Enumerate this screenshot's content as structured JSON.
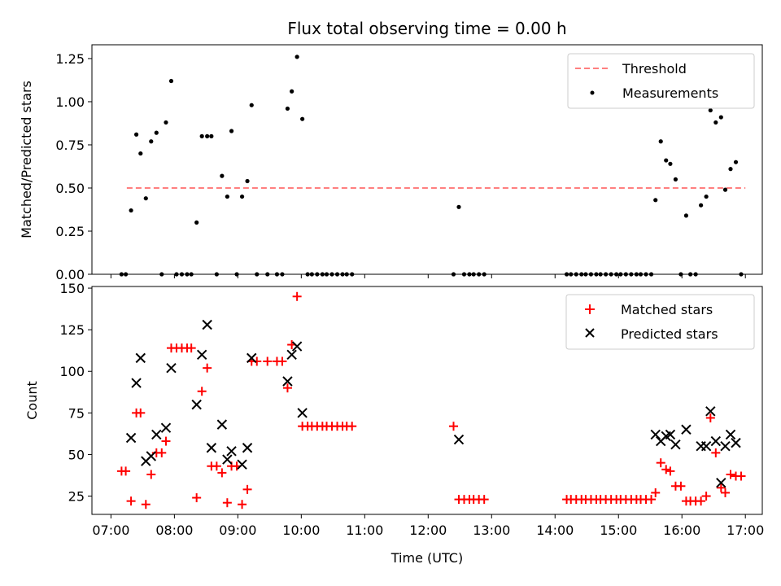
{
  "chart_data": [
    {
      "type": "scatter",
      "title": "Flux total observing time = 0.00 h",
      "xlabel": "",
      "ylabel": "Matched/Predicted stars",
      "xlim": [
        "06:42",
        "17:16"
      ],
      "ylim": [
        0,
        1.33
      ],
      "yticks": [
        "0.00",
        "0.25",
        "0.50",
        "0.75",
        "1.00",
        "1.25"
      ],
      "threshold": {
        "name": "Threshold",
        "y": 0.5,
        "x_range": [
          "07:15",
          "17:00"
        ],
        "color": "#ff7f7f",
        "style": "dashed"
      },
      "series": [
        {
          "name": "Measurements",
          "color": "#000000",
          "marker": "dot",
          "points": [
            [
              "07:10",
              0
            ],
            [
              "07:14",
              0
            ],
            [
              "07:19",
              0.37
            ],
            [
              "07:24",
              0.81
            ],
            [
              "07:28",
              0.7
            ],
            [
              "07:33",
              0.44
            ],
            [
              "07:38",
              0.77
            ],
            [
              "07:43",
              0.82
            ],
            [
              "07:48",
              0
            ],
            [
              "07:52",
              0.88
            ],
            [
              "07:57",
              1.12
            ],
            [
              "08:02",
              0
            ],
            [
              "08:07",
              0
            ],
            [
              "08:12",
              0
            ],
            [
              "08:16",
              0
            ],
            [
              "08:21",
              0.3
            ],
            [
              "08:26",
              0.8
            ],
            [
              "08:31",
              0.8
            ],
            [
              "08:35",
              0.8
            ],
            [
              "08:40",
              0
            ],
            [
              "08:45",
              0.57
            ],
            [
              "08:50",
              0.45
            ],
            [
              "08:54",
              0.83
            ],
            [
              "08:59",
              0
            ],
            [
              "09:04",
              0.45
            ],
            [
              "09:09",
              0.54
            ],
            [
              "09:13",
              0.98
            ],
            [
              "09:18",
              0
            ],
            [
              "09:28",
              0
            ],
            [
              "09:37",
              0
            ],
            [
              "09:42",
              0
            ],
            [
              "09:47",
              0.96
            ],
            [
              "09:51",
              1.06
            ],
            [
              "09:56",
              1.26
            ],
            [
              "10:01",
              0.9
            ],
            [
              "10:06",
              0
            ],
            [
              "10:10",
              0
            ],
            [
              "10:15",
              0
            ],
            [
              "10:20",
              0
            ],
            [
              "10:24",
              0
            ],
            [
              "10:29",
              0
            ],
            [
              "10:34",
              0
            ],
            [
              "10:39",
              0
            ],
            [
              "10:43",
              0
            ],
            [
              "10:48",
              0
            ],
            [
              "12:24",
              0
            ],
            [
              "12:29",
              0.39
            ],
            [
              "12:34",
              0
            ],
            [
              "12:39",
              0
            ],
            [
              "12:43",
              0
            ],
            [
              "12:48",
              0
            ],
            [
              "12:53",
              0
            ],
            [
              "14:11",
              0
            ],
            [
              "14:15",
              0
            ],
            [
              "14:20",
              0
            ],
            [
              "14:25",
              0
            ],
            [
              "14:29",
              0
            ],
            [
              "14:34",
              0
            ],
            [
              "14:39",
              0
            ],
            [
              "14:43",
              0
            ],
            [
              "14:48",
              0
            ],
            [
              "14:53",
              0
            ],
            [
              "14:58",
              0
            ],
            [
              "15:02",
              0
            ],
            [
              "15:07",
              0
            ],
            [
              "15:12",
              0
            ],
            [
              "15:17",
              0
            ],
            [
              "15:21",
              0
            ],
            [
              "15:26",
              0
            ],
            [
              "15:31",
              0
            ],
            [
              "15:35",
              0.43
            ],
            [
              "15:40",
              0.77
            ],
            [
              "15:45",
              0.66
            ],
            [
              "15:49",
              0.64
            ],
            [
              "15:54",
              0.55
            ],
            [
              "15:59",
              0
            ],
            [
              "16:04",
              0.34
            ],
            [
              "16:08",
              0
            ],
            [
              "16:13",
              0
            ],
            [
              "16:18",
              0.4
            ],
            [
              "16:23",
              0.45
            ],
            [
              "16:27",
              0.95
            ],
            [
              "16:32",
              0.88
            ],
            [
              "16:37",
              0.91
            ],
            [
              "16:41",
              0.49
            ],
            [
              "16:46",
              0.61
            ],
            [
              "16:51",
              0.65
            ],
            [
              "16:56",
              0
            ]
          ]
        }
      ],
      "legend": {
        "placement": "upper right",
        "entries": [
          "Threshold",
          "Measurements"
        ]
      }
    },
    {
      "type": "scatter",
      "title": "",
      "xlabel": "Time (UTC)",
      "ylabel": "Count",
      "xlim": [
        "06:42",
        "17:16"
      ],
      "ylim": [
        14,
        151
      ],
      "yticks": [
        "25",
        "50",
        "75",
        "100",
        "125",
        "150"
      ],
      "xticks": [
        "07:00",
        "08:00",
        "09:00",
        "10:00",
        "11:00",
        "12:00",
        "13:00",
        "14:00",
        "15:00",
        "16:00",
        "17:00"
      ],
      "series": [
        {
          "name": "Matched stars",
          "color": "#ff0000",
          "marker": "plus",
          "points": [
            [
              "07:10",
              40
            ],
            [
              "07:14",
              40
            ],
            [
              "07:19",
              22
            ],
            [
              "07:24",
              75
            ],
            [
              "07:28",
              75
            ],
            [
              "07:33",
              20
            ],
            [
              "07:38",
              38
            ],
            [
              "07:43",
              51
            ],
            [
              "07:48",
              51
            ],
            [
              "07:52",
              58
            ],
            [
              "07:57",
              114
            ],
            [
              "08:02",
              114
            ],
            [
              "08:07",
              114
            ],
            [
              "08:12",
              114
            ],
            [
              "08:16",
              114
            ],
            [
              "08:21",
              24
            ],
            [
              "08:26",
              88
            ],
            [
              "08:31",
              102
            ],
            [
              "08:35",
              43
            ],
            [
              "08:40",
              43
            ],
            [
              "08:45",
              39
            ],
            [
              "08:50",
              21
            ],
            [
              "08:54",
              43
            ],
            [
              "08:59",
              43
            ],
            [
              "09:04",
              20
            ],
            [
              "09:09",
              29
            ],
            [
              "09:13",
              106
            ],
            [
              "09:18",
              106
            ],
            [
              "09:28",
              106
            ],
            [
              "09:37",
              106
            ],
            [
              "09:42",
              106
            ],
            [
              "09:47",
              90
            ],
            [
              "09:51",
              116
            ],
            [
              "09:56",
              145
            ],
            [
              "10:01",
              67
            ],
            [
              "10:06",
              67
            ],
            [
              "10:10",
              67
            ],
            [
              "10:15",
              67
            ],
            [
              "10:20",
              67
            ],
            [
              "10:24",
              67
            ],
            [
              "10:29",
              67
            ],
            [
              "10:34",
              67
            ],
            [
              "10:39",
              67
            ],
            [
              "10:43",
              67
            ],
            [
              "10:48",
              67
            ],
            [
              "12:24",
              67
            ],
            [
              "12:29",
              23
            ],
            [
              "12:34",
              23
            ],
            [
              "12:39",
              23
            ],
            [
              "12:43",
              23
            ],
            [
              "12:48",
              23
            ],
            [
              "12:53",
              23
            ],
            [
              "14:11",
              23
            ],
            [
              "14:15",
              23
            ],
            [
              "14:20",
              23
            ],
            [
              "14:25",
              23
            ],
            [
              "14:29",
              23
            ],
            [
              "14:34",
              23
            ],
            [
              "14:39",
              23
            ],
            [
              "14:43",
              23
            ],
            [
              "14:48",
              23
            ],
            [
              "14:53",
              23
            ],
            [
              "14:58",
              23
            ],
            [
              "15:02",
              23
            ],
            [
              "15:07",
              23
            ],
            [
              "15:12",
              23
            ],
            [
              "15:17",
              23
            ],
            [
              "15:21",
              23
            ],
            [
              "15:26",
              23
            ],
            [
              "15:31",
              23
            ],
            [
              "15:35",
              27
            ],
            [
              "15:40",
              45
            ],
            [
              "15:45",
              41
            ],
            [
              "15:49",
              40
            ],
            [
              "15:54",
              31
            ],
            [
              "15:59",
              31
            ],
            [
              "16:04",
              22
            ],
            [
              "16:08",
              22
            ],
            [
              "16:13",
              22
            ],
            [
              "16:18",
              22
            ],
            [
              "16:23",
              25
            ],
            [
              "16:27",
              72
            ],
            [
              "16:32",
              51
            ],
            [
              "16:37",
              30
            ],
            [
              "16:41",
              27
            ],
            [
              "16:46",
              38
            ],
            [
              "16:51",
              37
            ],
            [
              "16:56",
              37
            ]
          ]
        },
        {
          "name": "Predicted stars",
          "color": "#000000",
          "marker": "x",
          "points": [
            [
              "07:19",
              60
            ],
            [
              "07:24",
              93
            ],
            [
              "07:28",
              108
            ],
            [
              "07:33",
              46
            ],
            [
              "07:38",
              49
            ],
            [
              "07:43",
              62
            ],
            [
              "07:52",
              66
            ],
            [
              "07:57",
              102
            ],
            [
              "08:21",
              80
            ],
            [
              "08:26",
              110
            ],
            [
              "08:31",
              128
            ],
            [
              "08:35",
              54
            ],
            [
              "08:45",
              68
            ],
            [
              "08:50",
              47
            ],
            [
              "08:54",
              52
            ],
            [
              "09:04",
              44
            ],
            [
              "09:09",
              54
            ],
            [
              "09:13",
              108
            ],
            [
              "09:47",
              94
            ],
            [
              "09:51",
              110
            ],
            [
              "09:56",
              115
            ],
            [
              "10:01",
              75
            ],
            [
              "12:29",
              59
            ],
            [
              "15:35",
              62
            ],
            [
              "15:40",
              58
            ],
            [
              "15:45",
              61
            ],
            [
              "15:49",
              62
            ],
            [
              "15:54",
              56
            ],
            [
              "16:04",
              65
            ],
            [
              "16:18",
              55
            ],
            [
              "16:23",
              55
            ],
            [
              "16:27",
              76
            ],
            [
              "16:32",
              58
            ],
            [
              "16:37",
              33
            ],
            [
              "16:41",
              55
            ],
            [
              "16:46",
              62
            ],
            [
              "16:51",
              57
            ]
          ]
        }
      ],
      "legend": {
        "placement": "upper right",
        "entries": [
          "Matched stars",
          "Predicted stars"
        ]
      }
    }
  ]
}
